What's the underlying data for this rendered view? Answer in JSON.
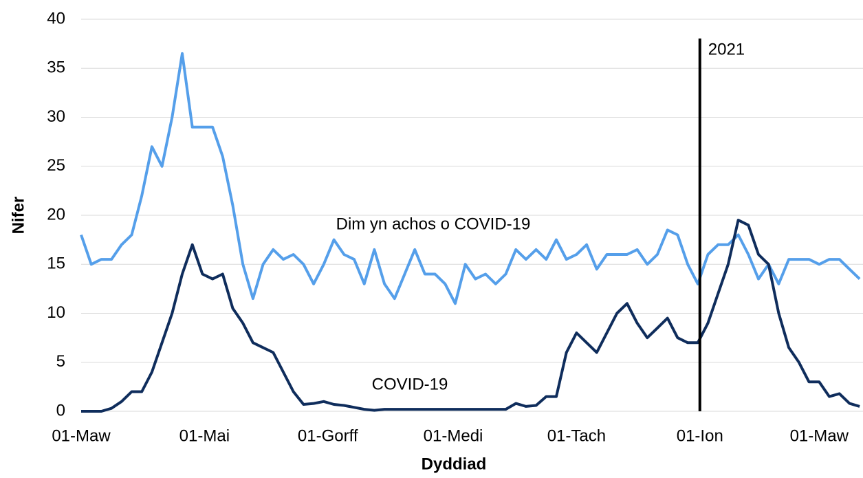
{
  "chart_data": {
    "type": "line",
    "x_label": "Dyddiad",
    "y_label": "Nifer",
    "x": [
      0,
      5,
      10,
      15,
      20,
      25,
      30,
      35,
      40,
      45,
      50,
      55,
      60,
      65,
      70,
      75,
      80,
      85,
      90,
      95,
      100,
      105,
      110,
      115,
      120,
      125,
      130,
      135,
      140,
      145,
      150,
      155,
      160,
      165,
      170,
      175,
      180,
      185,
      190,
      195,
      200,
      205,
      210,
      215,
      220,
      225,
      230,
      235,
      240,
      245,
      250,
      255,
      260,
      265,
      270,
      275,
      280,
      285,
      290,
      295,
      300,
      305,
      310,
      315,
      320,
      325,
      330,
      335,
      340,
      345,
      350,
      355,
      360,
      365,
      370,
      375,
      380,
      385
    ],
    "series": [
      {
        "name": "Dim yn achos o COVID-19",
        "color": "#559fea",
        "values": [
          18,
          15,
          15.5,
          15.5,
          17,
          18,
          22,
          27,
          25,
          30,
          36.5,
          29,
          29,
          29,
          26,
          21,
          15,
          11.5,
          15,
          16.5,
          15.5,
          16,
          15,
          13,
          15,
          17.5,
          16,
          15.5,
          13,
          16.5,
          13,
          11.5,
          14,
          16.5,
          14,
          14,
          13,
          11,
          15,
          13.5,
          14,
          13,
          14,
          16.5,
          15.5,
          16.5,
          15.5,
          17.5,
          15.5,
          16,
          17,
          14.5,
          16,
          16,
          16,
          16.5,
          15,
          16,
          18.5,
          18,
          15,
          13,
          16,
          17,
          17,
          18,
          16,
          13.5,
          15,
          13,
          15.5,
          15.5,
          15.5,
          15,
          15.5,
          15.5,
          14.5,
          13.5
        ]
      },
      {
        "name": "COVID-19",
        "color": "#0f2d5c",
        "values": [
          0,
          0,
          0,
          0.3,
          1,
          2,
          2,
          4,
          7,
          10,
          14,
          17,
          14,
          13.5,
          14,
          10.5,
          9,
          7,
          6.5,
          6,
          4,
          2,
          0.7,
          0.8,
          1,
          0.7,
          0.6,
          0.4,
          0.2,
          0.1,
          0.2,
          0.2,
          0.2,
          0.2,
          0.2,
          0.2,
          0.2,
          0.2,
          0.2,
          0.2,
          0.2,
          0.2,
          0.2,
          0.8,
          0.5,
          0.6,
          1.5,
          1.5,
          6,
          8,
          7,
          6,
          8,
          10,
          11,
          9,
          7.5,
          8.5,
          9.5,
          7.5,
          7,
          7,
          9,
          12,
          15,
          19.5,
          19,
          16,
          15,
          10,
          6.5,
          5,
          3,
          3,
          1.5,
          1.8,
          0.8,
          0.5
        ]
      }
    ],
    "xlim": [
      0,
      386
    ],
    "xticks": [
      {
        "value": 0,
        "label": "01-Maw"
      },
      {
        "value": 61,
        "label": "01-Mai"
      },
      {
        "value": 122,
        "label": "01-Gorff"
      },
      {
        "value": 184,
        "label": "01-Medi"
      },
      {
        "value": 245,
        "label": "01-Tach"
      },
      {
        "value": 306,
        "label": "01-Ion"
      },
      {
        "value": 365,
        "label": "01-Maw"
      }
    ],
    "ylim": [
      0,
      40
    ],
    "yticks": [
      0,
      5,
      10,
      15,
      20,
      25,
      30,
      35,
      40
    ],
    "grid": true,
    "vline": {
      "x": 306,
      "label": "2021"
    }
  }
}
